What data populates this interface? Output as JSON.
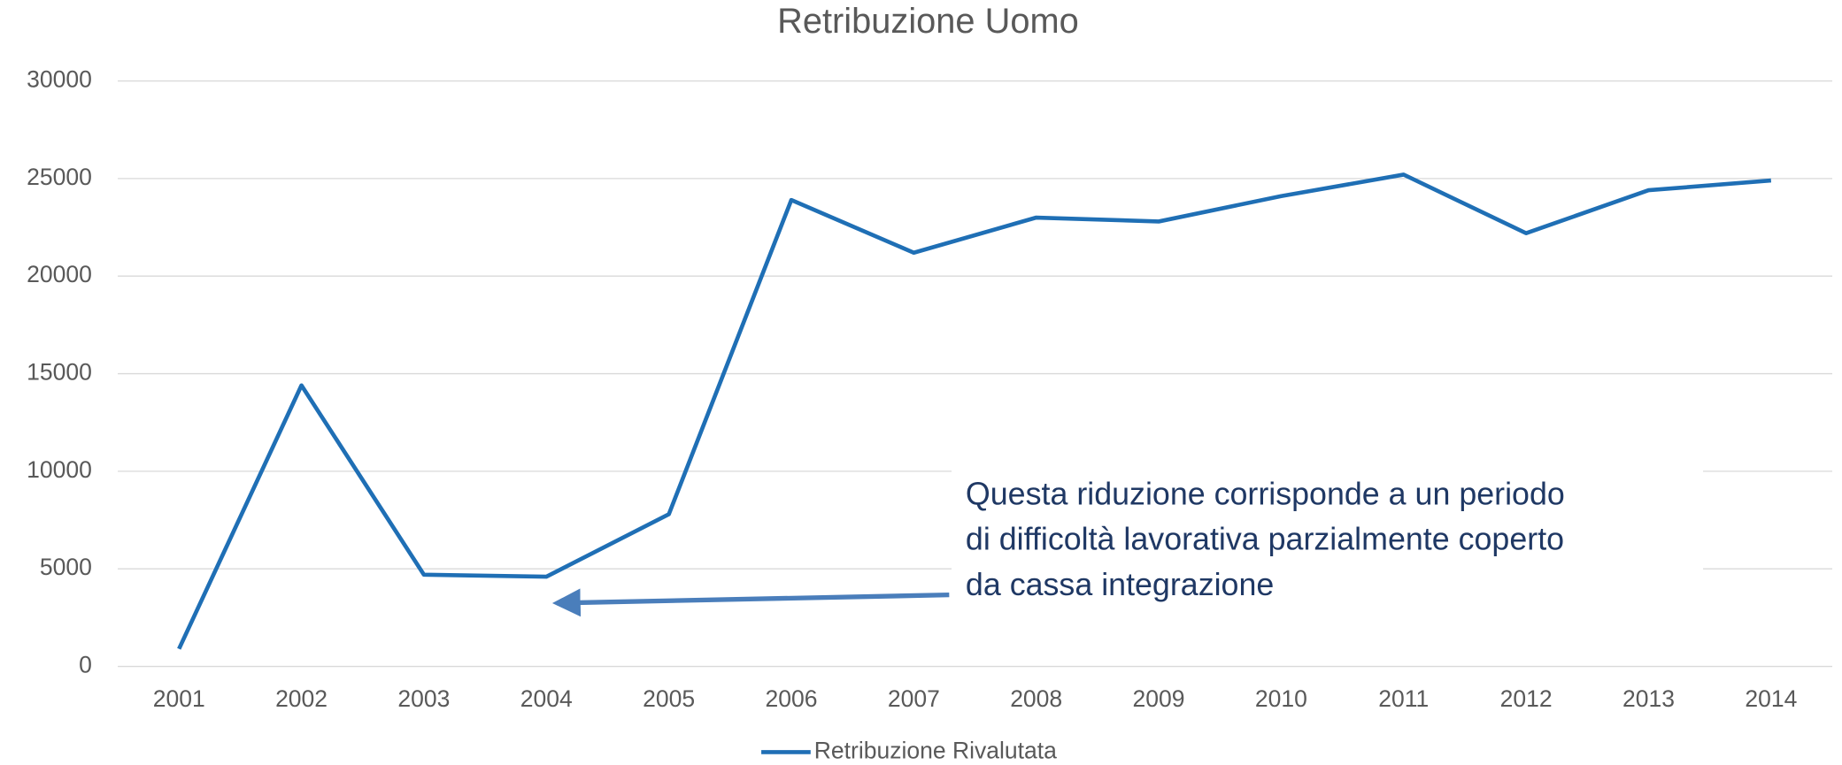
{
  "chart_data": {
    "type": "line",
    "title": "Retribuzione Uomo",
    "categories": [
      "2001",
      "2002",
      "2003",
      "2004",
      "2005",
      "2006",
      "2007",
      "2008",
      "2009",
      "2010",
      "2011",
      "2012",
      "2013",
      "2014"
    ],
    "series": [
      {
        "name": "Retribuzione Rivalutata",
        "color": "#1f6fb5",
        "values": [
          900,
          14400,
          4700,
          4600,
          7800,
          23900,
          21200,
          23000,
          22800,
          24100,
          25200,
          22200,
          24400,
          24900
        ]
      }
    ],
    "ylim": [
      0,
      30000
    ],
    "yticks": [
      0,
      5000,
      10000,
      15000,
      20000,
      25000,
      30000
    ],
    "grid": true,
    "legend": "bottom",
    "annotation": [
      "Questa riduzione  corrisponde a un periodo",
      "di difficoltà lavorativa parzialmente coperto",
      "da cassa integrazione"
    ]
  }
}
